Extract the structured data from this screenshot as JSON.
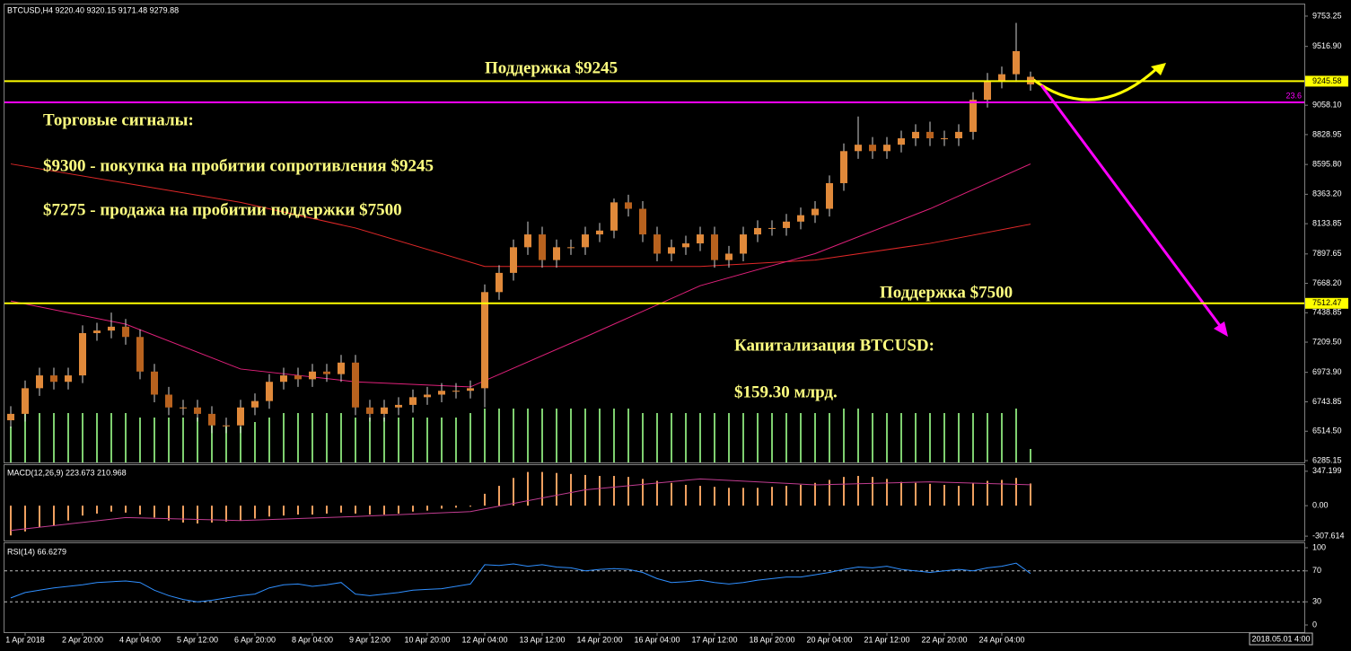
{
  "chart_data": [
    {
      "type": "candlestick",
      "header": "BTCUSD,H4  9220.40 9320.15 9171.48 9279.88",
      "open": [
        6600,
        6650,
        6850,
        6950,
        6900,
        6950,
        7280,
        7300,
        7330,
        7250,
        6980,
        6800,
        6700,
        6700,
        6650,
        6560,
        6560,
        6700,
        6750,
        6900,
        6950,
        6920,
        6980,
        6960,
        7050,
        6700,
        6650,
        6700,
        6720,
        6780,
        6800,
        6830,
        6830,
        6850,
        7600,
        7750,
        7950,
        8050,
        7850,
        7950,
        7950,
        8050,
        8080,
        8300,
        8250,
        8050,
        7900,
        7950,
        7980,
        8050,
        7850,
        7900,
        8050,
        8100,
        8100,
        8150,
        8200,
        8250,
        8450,
        8700,
        8750,
        8700,
        8750,
        8800,
        8850,
        8800,
        8800,
        8850,
        9100,
        9250,
        9300,
        9220.4
      ],
      "high": [
        6710,
        6910,
        7010,
        7010,
        7010,
        7340,
        7360,
        7440,
        7390,
        7310,
        7040,
        6860,
        6760,
        6760,
        6710,
        6620,
        6760,
        6810,
        6960,
        7010,
        7010,
        7040,
        7040,
        7110,
        7110,
        6760,
        6760,
        6780,
        6840,
        6860,
        6890,
        6890,
        6910,
        7660,
        7810,
        8010,
        8150,
        8110,
        8010,
        8010,
        8110,
        8140,
        8330,
        8360,
        8310,
        8110,
        8010,
        8040,
        8110,
        8110,
        7960,
        8110,
        8160,
        8160,
        8210,
        8260,
        8310,
        8510,
        8760,
        8970,
        8810,
        8810,
        8860,
        8910,
        8930,
        8860,
        8910,
        9160,
        9310,
        9360,
        9700,
        9320.15
      ],
      "low": [
        6540,
        6590,
        6790,
        6840,
        6840,
        6890,
        7220,
        7240,
        7190,
        6920,
        6740,
        6640,
        6640,
        6590,
        6500,
        6500,
        6500,
        6640,
        6690,
        6840,
        6860,
        6860,
        6900,
        6900,
        6640,
        6590,
        6590,
        6640,
        6660,
        6720,
        6740,
        6770,
        6770,
        6700,
        7540,
        7690,
        7890,
        7790,
        7790,
        7890,
        7890,
        7990,
        8020,
        8190,
        7990,
        7840,
        7840,
        7890,
        7920,
        7790,
        7790,
        7840,
        7990,
        8040,
        8040,
        8090,
        8140,
        8190,
        8390,
        8640,
        8640,
        8640,
        8690,
        8740,
        8740,
        8740,
        8740,
        8790,
        9040,
        9190,
        9240,
        9171.48
      ],
      "close": [
        6650,
        6850,
        6950,
        6900,
        6950,
        7280,
        7300,
        7330,
        7250,
        6980,
        6800,
        6700,
        6700,
        6650,
        6560,
        6560,
        6700,
        6750,
        6900,
        6950,
        6920,
        6980,
        6960,
        7050,
        6700,
        6650,
        6700,
        6720,
        6780,
        6800,
        6830,
        6830,
        6850,
        7600,
        7750,
        7950,
        8050,
        7850,
        7950,
        7950,
        8050,
        8080,
        8300,
        8250,
        8050,
        7900,
        7950,
        7980,
        8050,
        7850,
        7900,
        8050,
        8100,
        8100,
        8150,
        8200,
        8250,
        8450,
        8700,
        8750,
        8700,
        8750,
        8800,
        8850,
        8800,
        8800,
        8850,
        9100,
        9250,
        9300,
        9480,
        9279.88
      ],
      "up_color": "#e0893a",
      "down_color": "#b8621e",
      "wick_color": "#d0d0d0",
      "volume": [
        40,
        55,
        55,
        55,
        55,
        55,
        55,
        55,
        55,
        50,
        50,
        50,
        50,
        50,
        50,
        40,
        40,
        45,
        50,
        55,
        55,
        55,
        55,
        55,
        50,
        50,
        50,
        50,
        50,
        50,
        50,
        50,
        55,
        60,
        60,
        60,
        60,
        60,
        60,
        60,
        60,
        60,
        60,
        60,
        55,
        55,
        55,
        55,
        55,
        55,
        55,
        55,
        55,
        55,
        55,
        55,
        55,
        55,
        60,
        60,
        55,
        55,
        55,
        55,
        55,
        55,
        55,
        55,
        55,
        55,
        60,
        15
      ],
      "volume_color": "#7fd070",
      "overlays": [
        {
          "color": "#e02828",
          "x": [
            0,
            8,
            16,
            24,
            33,
            40,
            48,
            56,
            64,
            71
          ],
          "values": [
            8600,
            8450,
            8300,
            8100,
            7800,
            7800,
            7800,
            7850,
            7980,
            8130
          ]
        },
        {
          "color": "#e0207a",
          "x": [
            0,
            8,
            16,
            24,
            32,
            40,
            48,
            56,
            64,
            71
          ],
          "values": [
            7530,
            7350,
            7000,
            6900,
            6860,
            7250,
            7650,
            7900,
            8250,
            8600
          ]
        }
      ],
      "hlines": [
        {
          "value": 9245.58,
          "color": "#ffff00"
        },
        {
          "value": 7512.47,
          "color": "#ffff00"
        },
        {
          "value": 9080,
          "color": "#ff00ff",
          "level": 23.6
        }
      ],
      "ylim": [
        6271,
        9844
      ],
      "yticks": [
        9753.25,
        {
          "value": 9516.9,
          "label": "9516.90"
        },
        {
          "value": 9058.1,
          "label": "9058.10"
        },
        8828.95,
        {
          "value": 8595.8,
          "label": "8595.80"
        },
        {
          "value": 8363.2,
          "label": "8363.20"
        },
        8133.85,
        7897.65,
        {
          "value": 7668.2,
          "label": "7668.20"
        },
        7438.85,
        {
          "value": 7209.5,
          "label": "7209.50"
        },
        {
          "value": 6973.9,
          "label": "6973.90"
        },
        6743.85,
        {
          "value": 6514.5,
          "label": "6514.50"
        },
        6285.15
      ],
      "xticks": [
        {
          "value": 1,
          "label": "1 Apr 2018"
        },
        {
          "value": 5,
          "label": "2 Apr 20:00"
        },
        {
          "value": 9,
          "label": "4 Apr 04:00"
        },
        {
          "value": 13,
          "label": "5 Apr 12:00"
        },
        {
          "value": 17,
          "label": "6 Apr 20:00"
        },
        {
          "value": 21,
          "label": "8 Apr 04:00"
        },
        {
          "value": 25,
          "label": "9 Apr 12:00"
        },
        {
          "value": 29,
          "label": "10 Apr 20:00"
        },
        {
          "value": 33,
          "label": "12 Apr 04:00"
        },
        {
          "value": 37,
          "label": "13 Apr 12:00"
        },
        {
          "value": 41,
          "label": "14 Apr 20:00"
        },
        {
          "value": 45,
          "label": "16 Apr 04:00"
        },
        {
          "value": 49,
          "label": "17 Apr 12:00"
        },
        {
          "value": 53,
          "label": "18 Apr 20:00"
        },
        {
          "value": 57,
          "label": "20 Apr 04:00"
        },
        {
          "value": 61,
          "label": "21 Apr 12:00"
        },
        {
          "value": 65,
          "label": "22 Apr 20:00"
        },
        {
          "value": 69,
          "label": "24 Apr 04:00"
        }
      ],
      "cursor_time": "2018.05.01 4:00",
      "annotations": [
        "Поддержка $9245",
        "Торговые сигналы:",
        "$9300 - покупка на пробитии сопротивления $9245",
        "$7275 - продажа на пробитии поддержки $7500",
        "Поддержка $7500",
        "Капитализация BTCUSD:",
        "$159.30 млрд."
      ]
    },
    {
      "type": "macd",
      "header": "MACD(12,26,9) 223.673 210.968",
      "values": [
        -300,
        -260,
        -220,
        -200,
        -150,
        -100,
        -80,
        -60,
        -70,
        -90,
        -120,
        -150,
        -170,
        -180,
        -170,
        -160,
        -150,
        -130,
        -110,
        -100,
        -90,
        -90,
        -80,
        -70,
        -80,
        -90,
        -90,
        -80,
        -60,
        -50,
        -30,
        -20,
        -10,
        120,
        200,
        280,
        340,
        340,
        330,
        320,
        310,
        300,
        300,
        290,
        270,
        250,
        230,
        210,
        200,
        190,
        180,
        180,
        180,
        190,
        200,
        210,
        230,
        260,
        290,
        300,
        290,
        270,
        240,
        230,
        220,
        210,
        200,
        230,
        250,
        260,
        280,
        223.673
      ],
      "color": "#f0a060",
      "signal": {
        "color": "#c03c90",
        "x": [
          0,
          8,
          16,
          24,
          32,
          40,
          48,
          56,
          64,
          71
        ],
        "values": [
          -250,
          -120,
          -150,
          -110,
          -60,
          160,
          270,
          210,
          240,
          210.968
        ]
      },
      "ylim": [
        -352,
        409
      ],
      "yticks": [
        347.199,
        {
          "value": 0,
          "label": "0.00"
        },
        -307.614
      ]
    },
    {
      "type": "line",
      "header": "RSI(14) 66.6279",
      "values": [
        35,
        42,
        45,
        48,
        50,
        52,
        55,
        56,
        57,
        55,
        45,
        38,
        33,
        30,
        32,
        35,
        38,
        40,
        48,
        52,
        53,
        50,
        52,
        55,
        40,
        38,
        40,
        42,
        45,
        46,
        47,
        50,
        53,
        78,
        77,
        79,
        76,
        78,
        75,
        74,
        70,
        72,
        73,
        72,
        68,
        60,
        55,
        56,
        58,
        55,
        53,
        55,
        58,
        60,
        62,
        62,
        65,
        68,
        72,
        75,
        74,
        76,
        72,
        70,
        68,
        70,
        72,
        70,
        74,
        76,
        80,
        66.6279
      ],
      "color": "#2f8fff",
      "levels": [
        70,
        30
      ],
      "ylim": [
        -9.3,
        105.8
      ],
      "yticks": [
        100,
        70,
        30,
        0
      ]
    }
  ]
}
